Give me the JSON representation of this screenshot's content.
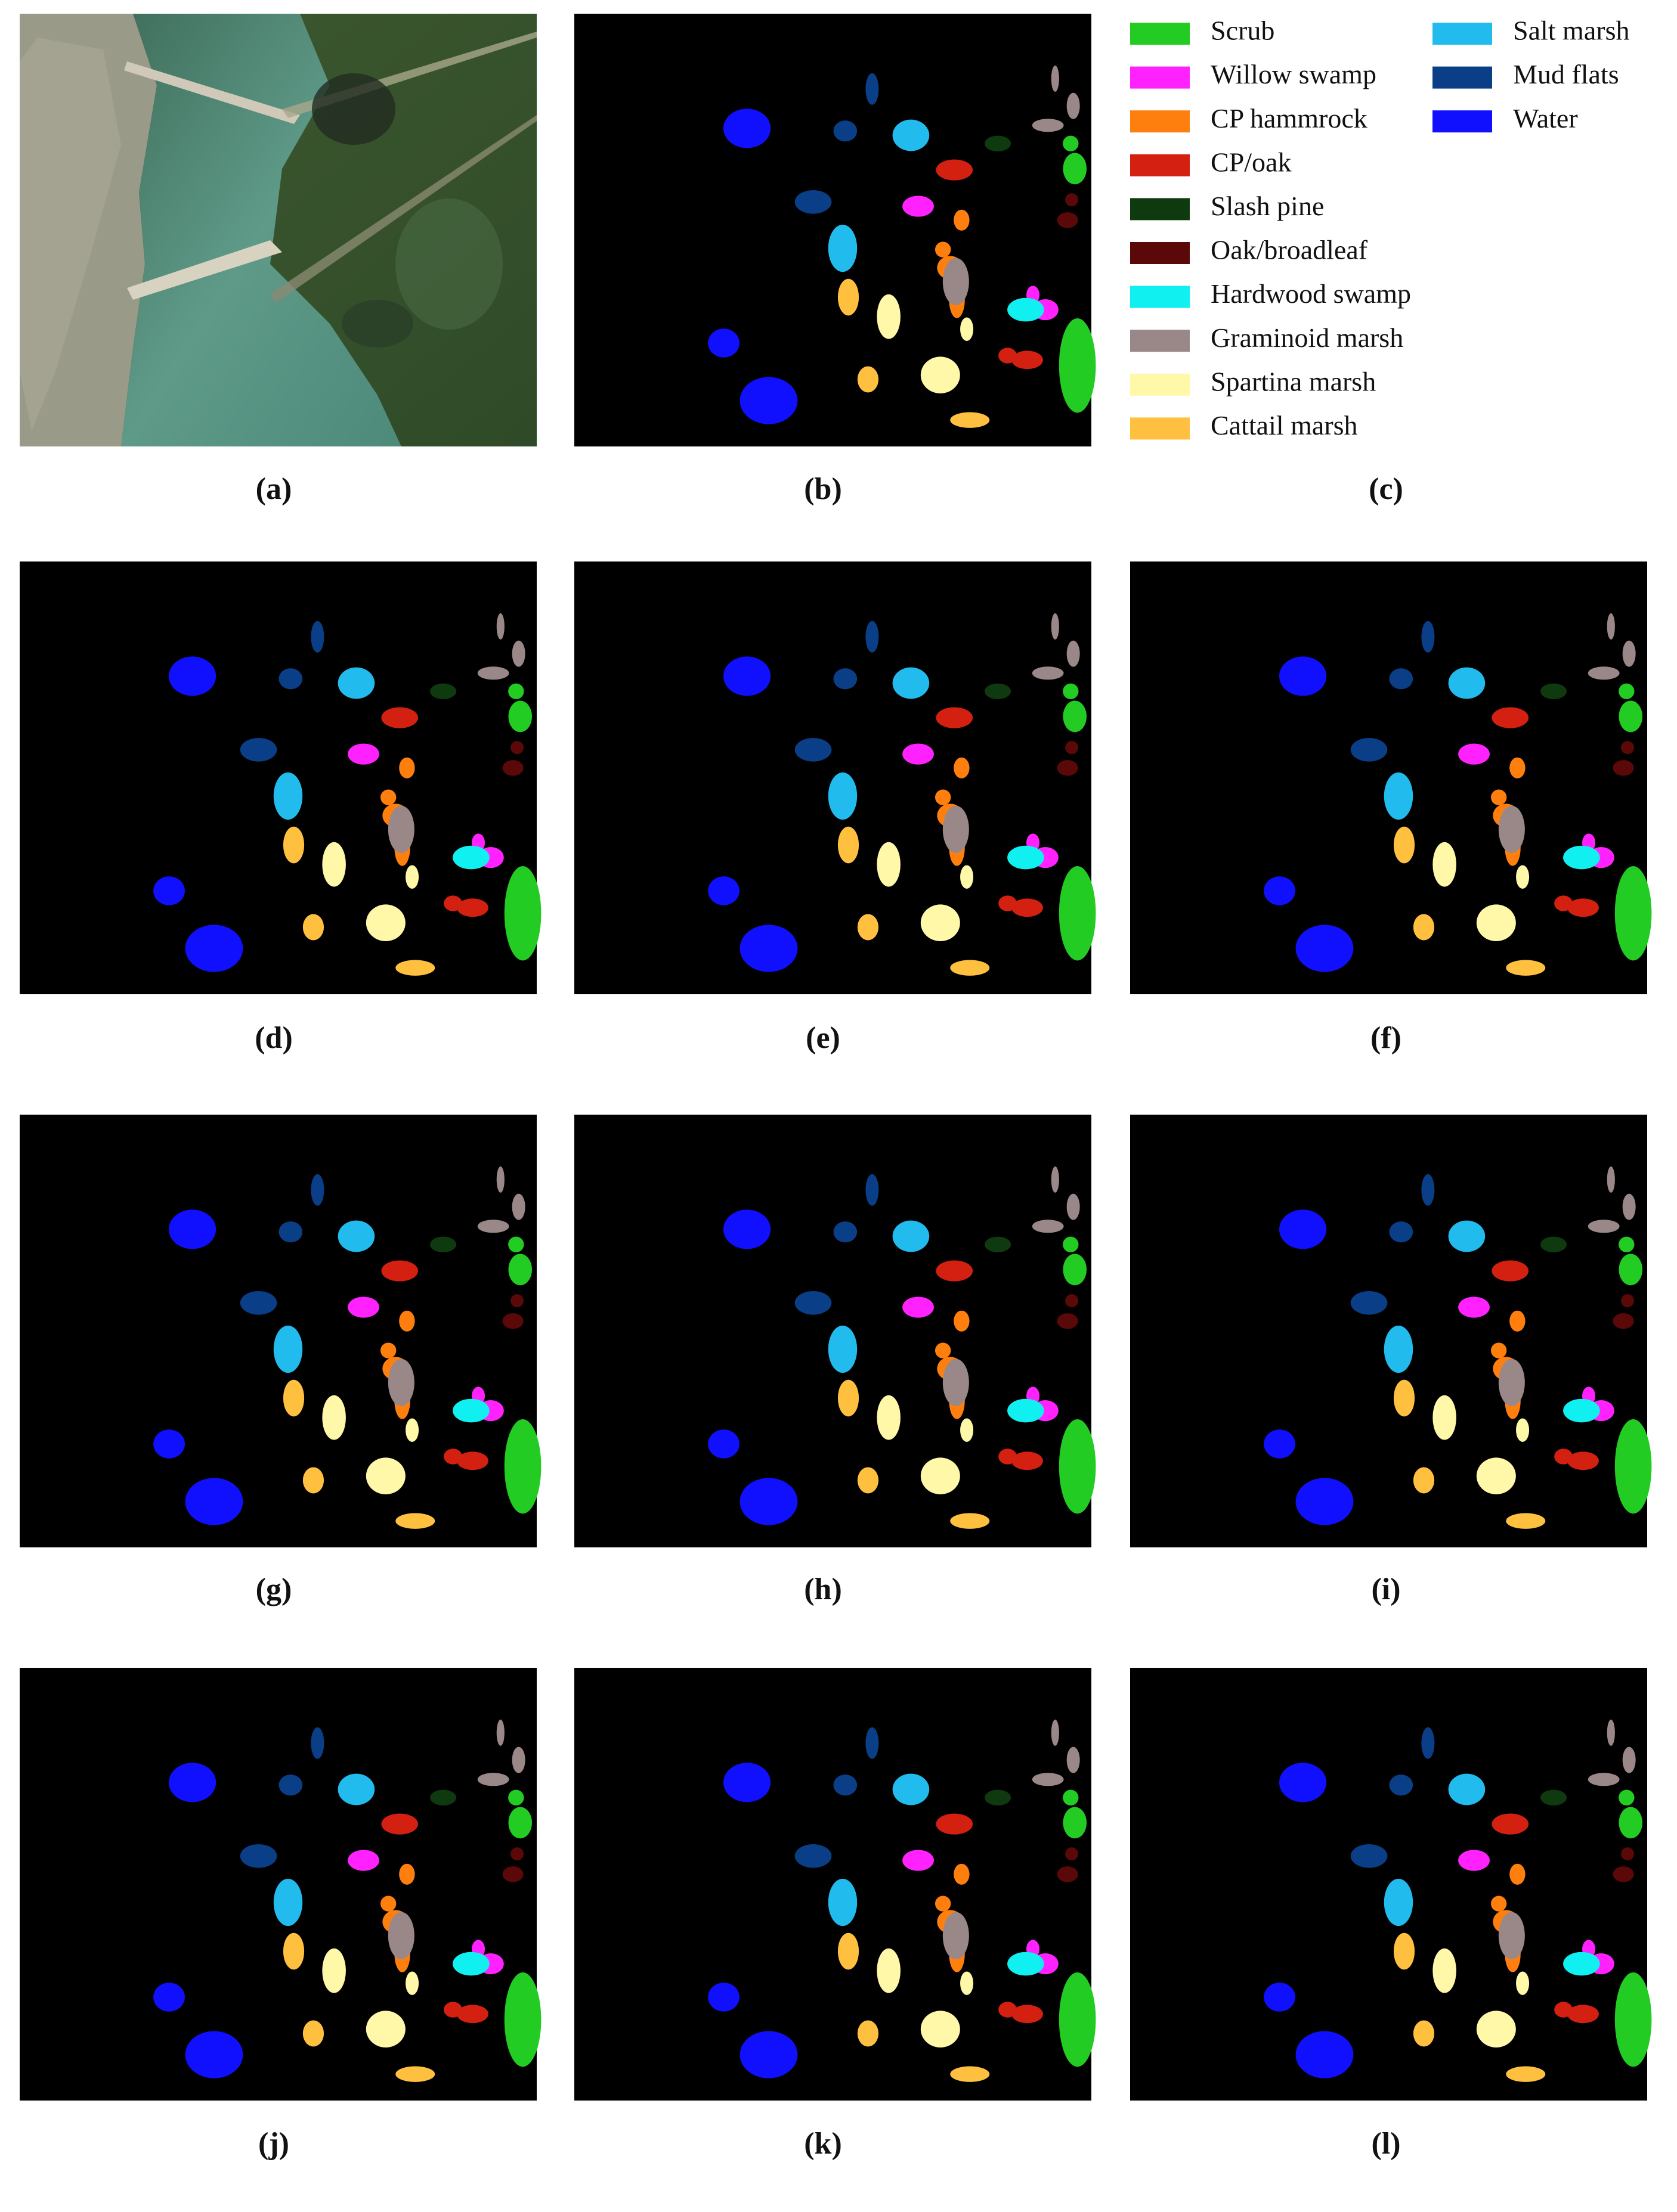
{
  "legend": {
    "items": [
      {
        "label": "Scrub",
        "color": "#22cc22"
      },
      {
        "label": "Willow swamp",
        "color": "#ff22ff"
      },
      {
        "label": "CP hammrock",
        "color": "#ff7f0e"
      },
      {
        "label": "CP/oak",
        "color": "#d42010"
      },
      {
        "label": "Slash pine",
        "color": "#0f3a10"
      },
      {
        "label": "Oak/broadleaf",
        "color": "#5a0808"
      },
      {
        "label": "Hardwood swamp",
        "color": "#11f0f0"
      },
      {
        "label": "Graminoid marsh",
        "color": "#9a8888"
      },
      {
        "label": "Spartina marsh",
        "color": "#fff8a8"
      },
      {
        "label": "Cattail marsh",
        "color": "#ffc040"
      },
      {
        "label": "Salt marsh",
        "color": "#22bbee"
      },
      {
        "label": "Mud flats",
        "color": "#0a3f88"
      },
      {
        "label": "Water",
        "color": "#1010ff"
      }
    ]
  },
  "panels": [
    {
      "label": "(a)"
    },
    {
      "label": "(b)"
    },
    {
      "label": "(c)"
    },
    {
      "label": "(d)"
    },
    {
      "label": "(e)"
    },
    {
      "label": "(f)"
    },
    {
      "label": "(g)"
    },
    {
      "label": "(h)"
    },
    {
      "label": "(i)"
    },
    {
      "label": "(j)"
    },
    {
      "label": "(k)"
    },
    {
      "label": "(l)"
    }
  ]
}
